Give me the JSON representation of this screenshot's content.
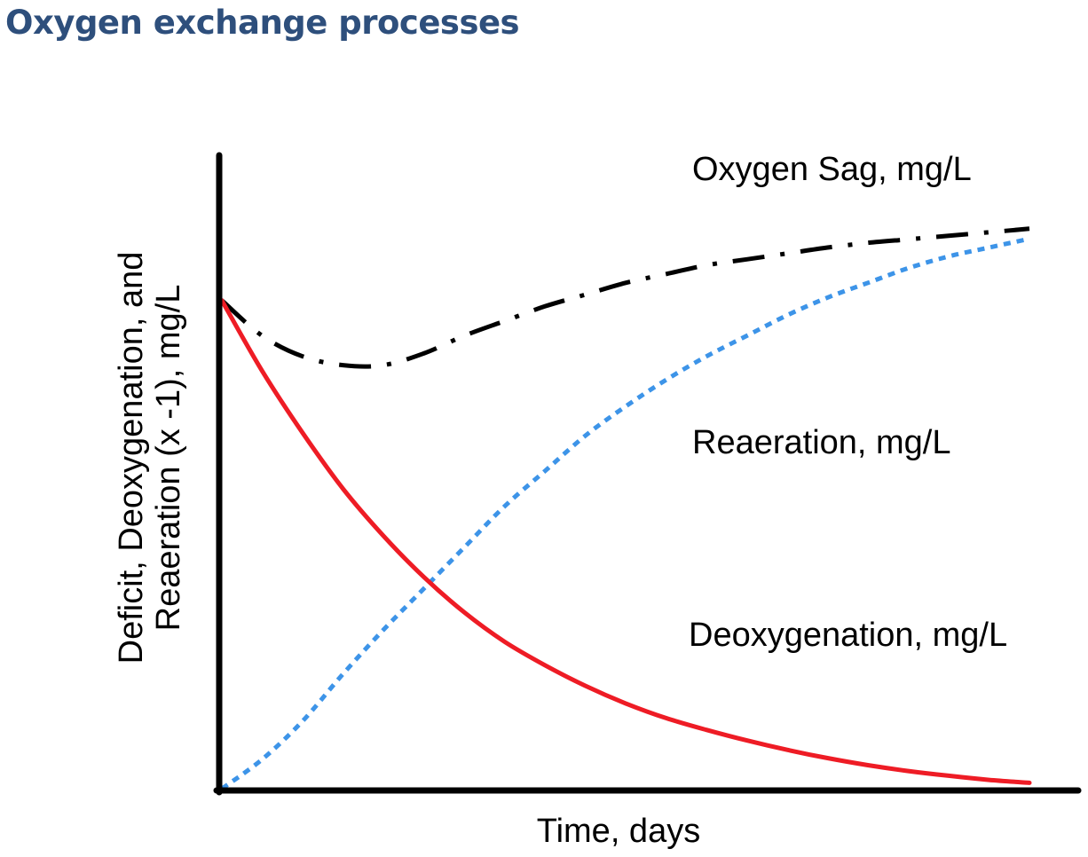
{
  "page": {
    "title": "Oxygen exchange processes",
    "title_color": "#2e4f7c"
  },
  "chart_data": {
    "type": "line",
    "title": "",
    "xlabel": "Time, days",
    "ylabel_lines": [
      "Deficit, Deoxygenation, and",
      "Reaeration (x -1), mg/L"
    ],
    "xlim": [
      0,
      10
    ],
    "ylim": [
      0,
      10
    ],
    "grid": false,
    "ticks": false,
    "series": [
      {
        "name": "Oxygen Sag, mg/L",
        "color": "#000000",
        "style": "dash-dot",
        "x": [
          0,
          0.5,
          1,
          1.5,
          2,
          2.5,
          3,
          3.5,
          4,
          4.5,
          5,
          5.5,
          6,
          6.5,
          7,
          7.5,
          8,
          8.5,
          9,
          9.5,
          10
        ],
        "y": [
          8.3,
          7.7,
          7.35,
          7.2,
          7.2,
          7.4,
          7.7,
          7.95,
          8.2,
          8.4,
          8.6,
          8.75,
          8.9,
          9.0,
          9.1,
          9.2,
          9.28,
          9.34,
          9.4,
          9.46,
          9.52
        ]
      },
      {
        "name": "Reaeration, mg/L",
        "color": "#3d94e8",
        "style": "dotted",
        "x": [
          0,
          0.5,
          1,
          1.5,
          2,
          2.5,
          3,
          3.5,
          4,
          4.5,
          5,
          5.5,
          6,
          6.5,
          7,
          7.5,
          8,
          8.5,
          9,
          9.5,
          10
        ],
        "y": [
          0,
          0.5,
          1.15,
          1.95,
          2.7,
          3.4,
          4.1,
          4.8,
          5.4,
          6.0,
          6.5,
          6.95,
          7.35,
          7.7,
          8.05,
          8.35,
          8.6,
          8.85,
          9.05,
          9.2,
          9.35
        ]
      },
      {
        "name": "Deoxygenation, mg/L",
        "color": "#ee1c25",
        "style": "solid",
        "x": [
          0,
          0.5,
          1,
          1.5,
          2,
          2.5,
          3,
          3.5,
          4,
          4.5,
          5,
          5.5,
          6,
          6.5,
          7,
          7.5,
          8,
          8.5,
          9,
          9.5,
          10
        ],
        "y": [
          8.3,
          7.1,
          6.05,
          5.1,
          4.3,
          3.6,
          3.0,
          2.5,
          2.1,
          1.75,
          1.45,
          1.2,
          1.0,
          0.82,
          0.66,
          0.52,
          0.4,
          0.3,
          0.22,
          0.15,
          0.1
        ]
      }
    ],
    "annotations": [
      "Oxygen Sag, mg/L",
      "Reaeration, mg/L",
      "Deoxygenation, mg/L"
    ]
  }
}
